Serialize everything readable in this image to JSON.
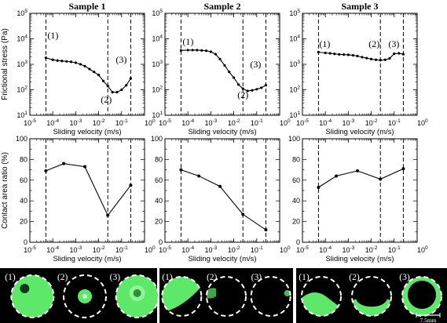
{
  "figure": {
    "panel_titles": [
      "Sample 1",
      "Sample 2",
      "Sample 3"
    ],
    "ylabel_top": "Frictional stress (Pa)",
    "ylabel_bottom": "Contact area  ratio (%)",
    "xlabel": "Sliding velocity (m/s)",
    "scale_bar_label": "7.5mm",
    "x_ticks": [
      {
        "base": "10",
        "exp": "-5"
      },
      {
        "base": "10",
        "exp": "-4"
      },
      {
        "base": "10",
        "exp": "-3"
      },
      {
        "base": "10",
        "exp": "-2"
      },
      {
        "base": "10",
        "exp": "-1"
      },
      {
        "base": "10",
        "exp": "0"
      }
    ],
    "y_ticks_top": [
      {
        "base": "10",
        "exp": "1"
      },
      {
        "base": "10",
        "exp": "2"
      },
      {
        "base": "10",
        "exp": "3"
      },
      {
        "base": "10",
        "exp": "4"
      },
      {
        "base": "10",
        "exp": "5"
      }
    ],
    "y_ticks_bottom": [
      "0",
      "20",
      "40",
      "60",
      "80",
      "100"
    ],
    "photo_labels": [
      [
        "(1)",
        "(2)",
        "(3)"
      ],
      [
        "(1)",
        "(2)",
        "(3)"
      ],
      [
        "(1)",
        "(2)",
        "(3)"
      ]
    ],
    "colors": {
      "photo_bg": "#000000",
      "contact_green": "#5ee86a",
      "circle": "#ffffff"
    }
  },
  "chart_data": [
    {
      "type": "line",
      "title": "Sample 1",
      "xlabel": "Sliding velocity (m/s)",
      "ylabel": "Frictional stress (Pa)",
      "x_scale": "log",
      "y_scale": "log",
      "xlim": [
        1e-05,
        1
      ],
      "ylim": [
        10,
        100000
      ],
      "x": [
        5e-05,
        0.0001,
        0.00016,
        0.00025,
        0.0004,
        0.00063,
        0.001,
        0.0016,
        0.0025,
        0.004,
        0.0063,
        0.01,
        0.016,
        0.025,
        0.04,
        0.063,
        0.1,
        0.16,
        0.25
      ],
      "y": [
        1800,
        1500,
        1400,
        1350,
        1300,
        1250,
        1150,
        1000,
        850,
        650,
        500,
        380,
        220,
        140,
        80,
        80,
        100,
        150,
        280
      ],
      "markers": [
        {
          "label": "(1)",
          "x": 5e-05
        },
        {
          "label": "(2)",
          "x": 0.025
        },
        {
          "label": "(3)",
          "x": 0.25
        }
      ]
    },
    {
      "type": "line",
      "title": "Sample 2",
      "xlabel": "Sliding velocity (m/s)",
      "ylabel": "Frictional stress (Pa)",
      "x_scale": "log",
      "y_scale": "log",
      "xlim": [
        1e-05,
        1
      ],
      "ylim": [
        10,
        100000
      ],
      "x": [
        5e-05,
        0.0001,
        0.00016,
        0.00025,
        0.0004,
        0.00063,
        0.001,
        0.0016,
        0.0025,
        0.004,
        0.0063,
        0.01,
        0.016,
        0.025,
        0.04,
        0.063,
        0.1,
        0.16,
        0.25
      ],
      "y": [
        3500,
        3600,
        3600,
        3600,
        3500,
        3400,
        3100,
        2500,
        1600,
        900,
        500,
        300,
        160,
        110,
        90,
        95,
        105,
        120,
        150
      ],
      "markers": [
        {
          "label": "(1)",
          "x": 5e-05
        },
        {
          "label": "(2)",
          "x": 0.025
        },
        {
          "label": "(3)",
          "x": 0.25
        }
      ]
    },
    {
      "type": "line",
      "title": "Sample 3",
      "xlabel": "Sliding velocity (m/s)",
      "ylabel": "Frictional stress (Pa)",
      "x_scale": "log",
      "y_scale": "log",
      "xlim": [
        1e-05,
        1
      ],
      "ylim": [
        10,
        100000
      ],
      "x": [
        5e-05,
        0.0001,
        0.00016,
        0.00025,
        0.0004,
        0.00063,
        0.001,
        0.0016,
        0.0025,
        0.004,
        0.0063,
        0.01,
        0.016,
        0.025,
        0.04,
        0.063,
        0.1,
        0.16,
        0.25
      ],
      "y": [
        3000,
        2800,
        2700,
        2550,
        2450,
        2400,
        2350,
        2250,
        2100,
        1900,
        1750,
        1600,
        1500,
        1450,
        1500,
        1700,
        2600,
        2700,
        2500
      ],
      "markers": [
        {
          "label": "(1)",
          "x": 5e-05
        },
        {
          "label": "(2)",
          "x": 0.025
        },
        {
          "label": "(3)",
          "x": 0.25
        }
      ]
    },
    {
      "type": "line",
      "title": "Sample 1",
      "xlabel": "Sliding velocity (m/s)",
      "ylabel": "Contact area  ratio (%)",
      "x_scale": "log",
      "xlim": [
        1e-05,
        1
      ],
      "ylim": [
        0,
        100
      ],
      "x": [
        5e-05,
        0.0003,
        0.0025,
        0.025,
        0.25
      ],
      "y": [
        69,
        76,
        73,
        26,
        55
      ],
      "markers": [
        {
          "x": 5e-05
        },
        {
          "x": 0.025
        },
        {
          "x": 0.25
        }
      ]
    },
    {
      "type": "line",
      "title": "Sample 2",
      "xlabel": "Sliding velocity (m/s)",
      "ylabel": "Contact area  ratio (%)",
      "x_scale": "log",
      "xlim": [
        1e-05,
        1
      ],
      "ylim": [
        0,
        100
      ],
      "x": [
        5e-05,
        0.0003,
        0.0025,
        0.025,
        0.25
      ],
      "y": [
        70,
        64,
        54,
        27,
        12
      ],
      "markers": [
        {
          "x": 5e-05
        },
        {
          "x": 0.025
        },
        {
          "x": 0.25
        }
      ]
    },
    {
      "type": "line",
      "title": "Sample 3",
      "xlabel": "Sliding velocity (m/s)",
      "ylabel": "Contact area  ratio (%)",
      "x_scale": "log",
      "xlim": [
        1e-05,
        1
      ],
      "ylim": [
        0,
        100
      ],
      "x": [
        5e-05,
        0.0003,
        0.0025,
        0.025,
        0.25
      ],
      "y": [
        53,
        64,
        69,
        61,
        71
      ],
      "markers": [
        {
          "x": 5e-05
        },
        {
          "x": 0.025
        },
        {
          "x": 0.25
        }
      ]
    }
  ]
}
